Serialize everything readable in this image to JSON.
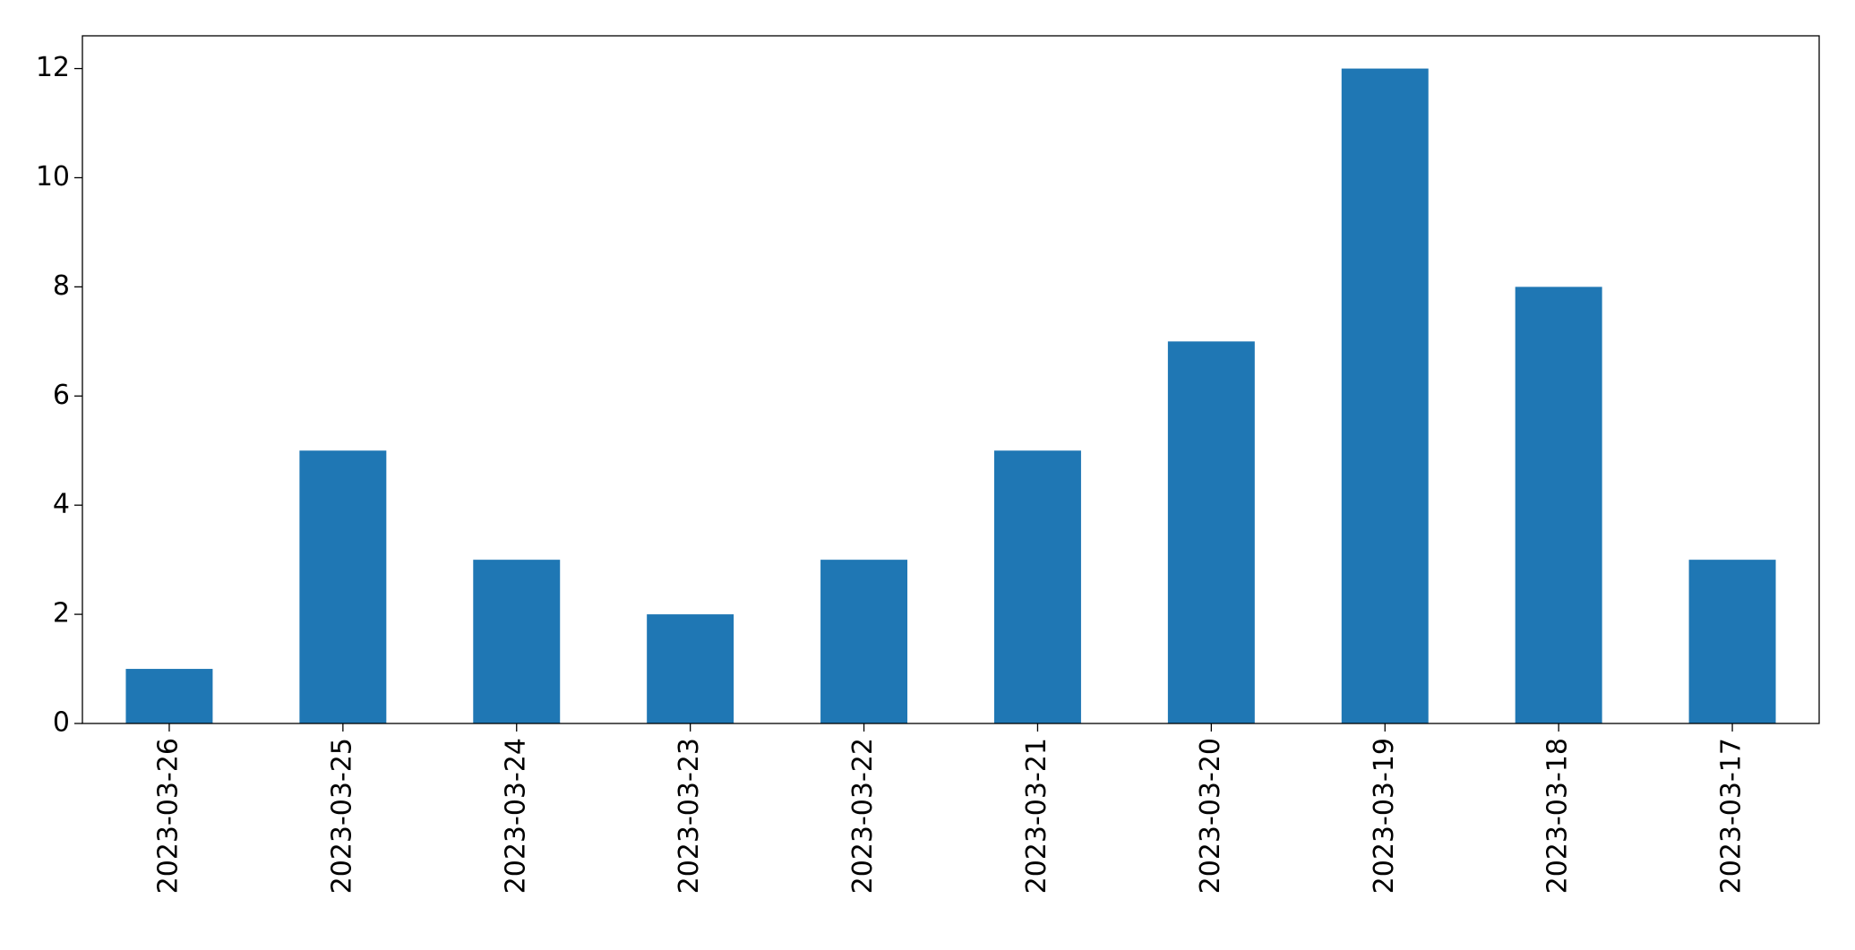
{
  "chart_data": {
    "type": "bar",
    "categories": [
      "2023-03-26",
      "2023-03-25",
      "2023-03-24",
      "2023-03-23",
      "2023-03-22",
      "2023-03-21",
      "2023-03-20",
      "2023-03-19",
      "2023-03-18",
      "2023-03-17"
    ],
    "values": [
      1,
      5,
      3,
      2,
      3,
      5,
      7,
      12,
      8,
      3
    ],
    "color": "#1f77b4",
    "ylim": [
      0,
      12.6
    ],
    "yticks": [
      0,
      2,
      4,
      6,
      8,
      10,
      12
    ],
    "grid": false
  }
}
